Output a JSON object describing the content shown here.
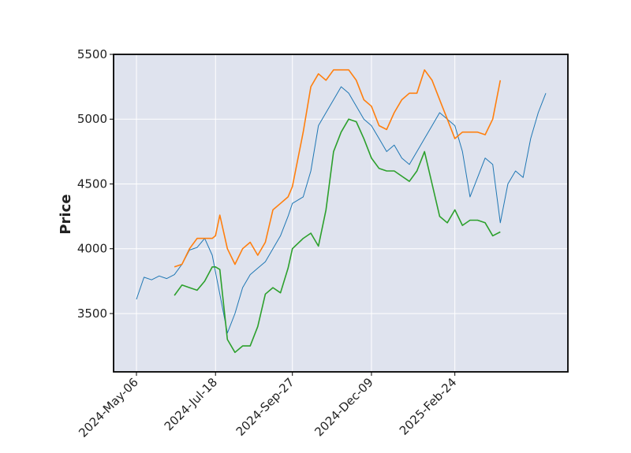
{
  "chart_data": {
    "type": "line",
    "title": "",
    "xlabel": "",
    "ylabel": "Price",
    "ylim": [
      3050,
      5500
    ],
    "yticks": [
      3500,
      4000,
      4500,
      5000,
      5500
    ],
    "grid": true,
    "legend": "none",
    "x": [
      "2024-05-06",
      "2024-05-13",
      "2024-05-20",
      "2024-05-27",
      "2024-06-03",
      "2024-06-10",
      "2024-06-17",
      "2024-06-24",
      "2024-07-01",
      "2024-07-08",
      "2024-07-15",
      "2024-07-18",
      "2024-07-22",
      "2024-07-29",
      "2024-08-05",
      "2024-08-12",
      "2024-08-19",
      "2024-08-26",
      "2024-09-02",
      "2024-09-09",
      "2024-09-16",
      "2024-09-23",
      "2024-09-27",
      "2024-10-07",
      "2024-10-14",
      "2024-10-21",
      "2024-10-28",
      "2024-11-04",
      "2024-11-11",
      "2024-11-18",
      "2024-11-25",
      "2024-12-02",
      "2024-12-09",
      "2024-12-16",
      "2024-12-23",
      "2024-12-30",
      "2025-01-06",
      "2025-01-13",
      "2025-01-20",
      "2025-01-27",
      "2025-02-03",
      "2025-02-10",
      "2025-02-17",
      "2025-02-24",
      "2025-03-03",
      "2025-03-10",
      "2025-03-17",
      "2025-03-24",
      "2025-03-31",
      "2025-04-07",
      "2025-04-14",
      "2025-04-21",
      "2025-04-28",
      "2025-05-05",
      "2025-05-12",
      "2025-05-19"
    ],
    "xtick_labels": [
      "2024-May-06",
      "2024-Jul-18",
      "2024-Sep-27",
      "2024-Dec-09",
      "2025-Feb-24"
    ],
    "series": [
      {
        "color": "#1f77b4",
        "values": [
          3610,
          3780,
          3760,
          3790,
          3770,
          3800,
          3880,
          3990,
          4010,
          4080,
          3950,
          3820,
          3650,
          3350,
          3500,
          3700,
          3800,
          3850,
          3900,
          4000,
          4100,
          4250,
          4350,
          4400,
          4600,
          4950,
          5050,
          5150,
          5250,
          5200,
          5100,
          5000,
          4950,
          4850,
          4750,
          4800,
          4700,
          4650,
          4750,
          4850,
          4950,
          5050,
          5000,
          4950,
          4750,
          4400,
          4550,
          4700,
          4650,
          4200,
          4500,
          4600,
          4550,
          4850,
          5050,
          5200
        ]
      },
      {
        "color": "#ff7f0e",
        "values": [
          null,
          null,
          null,
          null,
          null,
          3860,
          3880,
          4000,
          4080,
          4080,
          4080,
          4100,
          4260,
          4000,
          3880,
          4000,
          4050,
          3950,
          4050,
          4300,
          4350,
          4400,
          4480,
          4900,
          5250,
          5350,
          5300,
          5380,
          5380,
          5380,
          5300,
          5150,
          5100,
          4950,
          4920,
          5050,
          5150,
          5200,
          5200,
          5380,
          5300,
          5150,
          5000,
          4850,
          4900,
          4900,
          4900,
          4880,
          5000,
          5300,
          null,
          null,
          null,
          null,
          null,
          null
        ]
      },
      {
        "color": "#2ca02c",
        "values": [
          null,
          null,
          null,
          null,
          null,
          3640,
          3720,
          3700,
          3680,
          3750,
          3860,
          3860,
          3840,
          3300,
          3200,
          3250,
          3250,
          3400,
          3650,
          3700,
          3660,
          3850,
          4000,
          4080,
          4120,
          4020,
          4300,
          4750,
          4900,
          5000,
          4980,
          4850,
          4700,
          4620,
          4600,
          4600,
          4560,
          4520,
          4600,
          4750,
          4500,
          4250,
          4200,
          4300,
          4180,
          4220,
          4220,
          4200,
          4100,
          4130,
          null,
          null,
          null,
          null,
          null,
          null
        ]
      }
    ]
  }
}
